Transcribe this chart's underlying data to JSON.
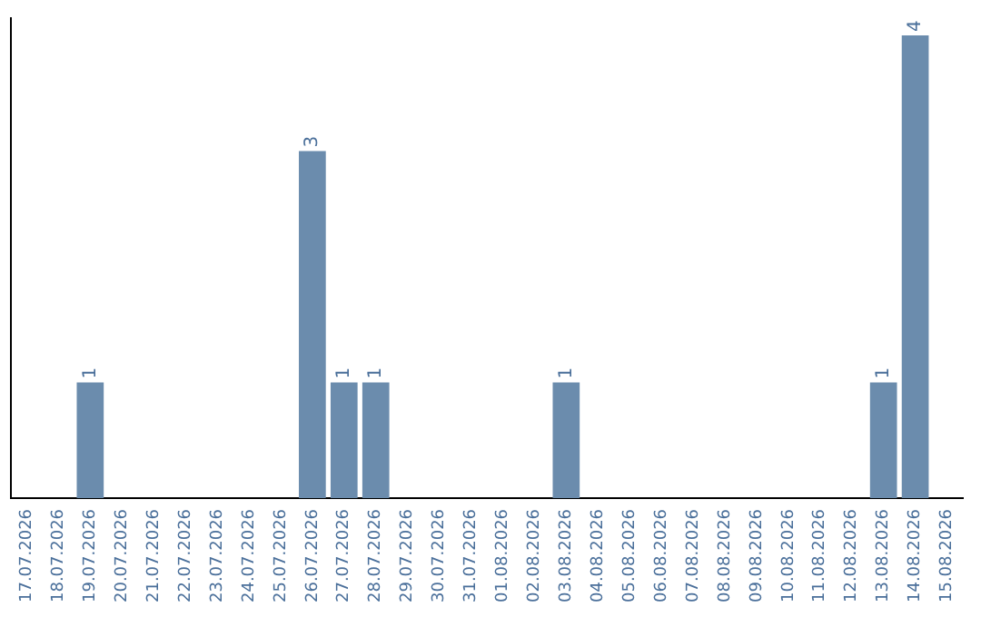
{
  "chart_data": {
    "type": "bar",
    "categories": [
      "17.07.2026",
      "18.07.2026",
      "19.07.2026",
      "20.07.2026",
      "21.07.2026",
      "22.07.2026",
      "23.07.2026",
      "24.07.2026",
      "25.07.2026",
      "26.07.2026",
      "27.07.2026",
      "28.07.2026",
      "29.07.2026",
      "30.07.2026",
      "31.07.2026",
      "01.08.2026",
      "02.08.2026",
      "03.08.2026",
      "04.08.2026",
      "05.08.2026",
      "06.08.2026",
      "07.08.2026",
      "08.08.2026",
      "09.08.2026",
      "10.08.2026",
      "11.08.2026",
      "12.08.2026",
      "13.08.2026",
      "14.08.2026",
      "15.08.2026"
    ],
    "values": [
      0,
      0,
      1,
      0,
      0,
      0,
      0,
      0,
      0,
      3,
      1,
      1,
      0,
      0,
      0,
      0,
      0,
      1,
      0,
      0,
      0,
      0,
      0,
      0,
      0,
      0,
      0,
      1,
      4,
      0
    ],
    "color": "#6b8cad",
    "ylim": [
      0,
      4.15
    ],
    "tick_labels": "x",
    "value_labels": [
      null,
      null,
      "1",
      null,
      null,
      null,
      null,
      null,
      null,
      "3",
      "1",
      "1",
      null,
      null,
      null,
      null,
      null,
      "1",
      null,
      null,
      null,
      null,
      null,
      null,
      null,
      null,
      null,
      "1",
      "4",
      null
    ],
    "grid": false,
    "legend": false
  }
}
